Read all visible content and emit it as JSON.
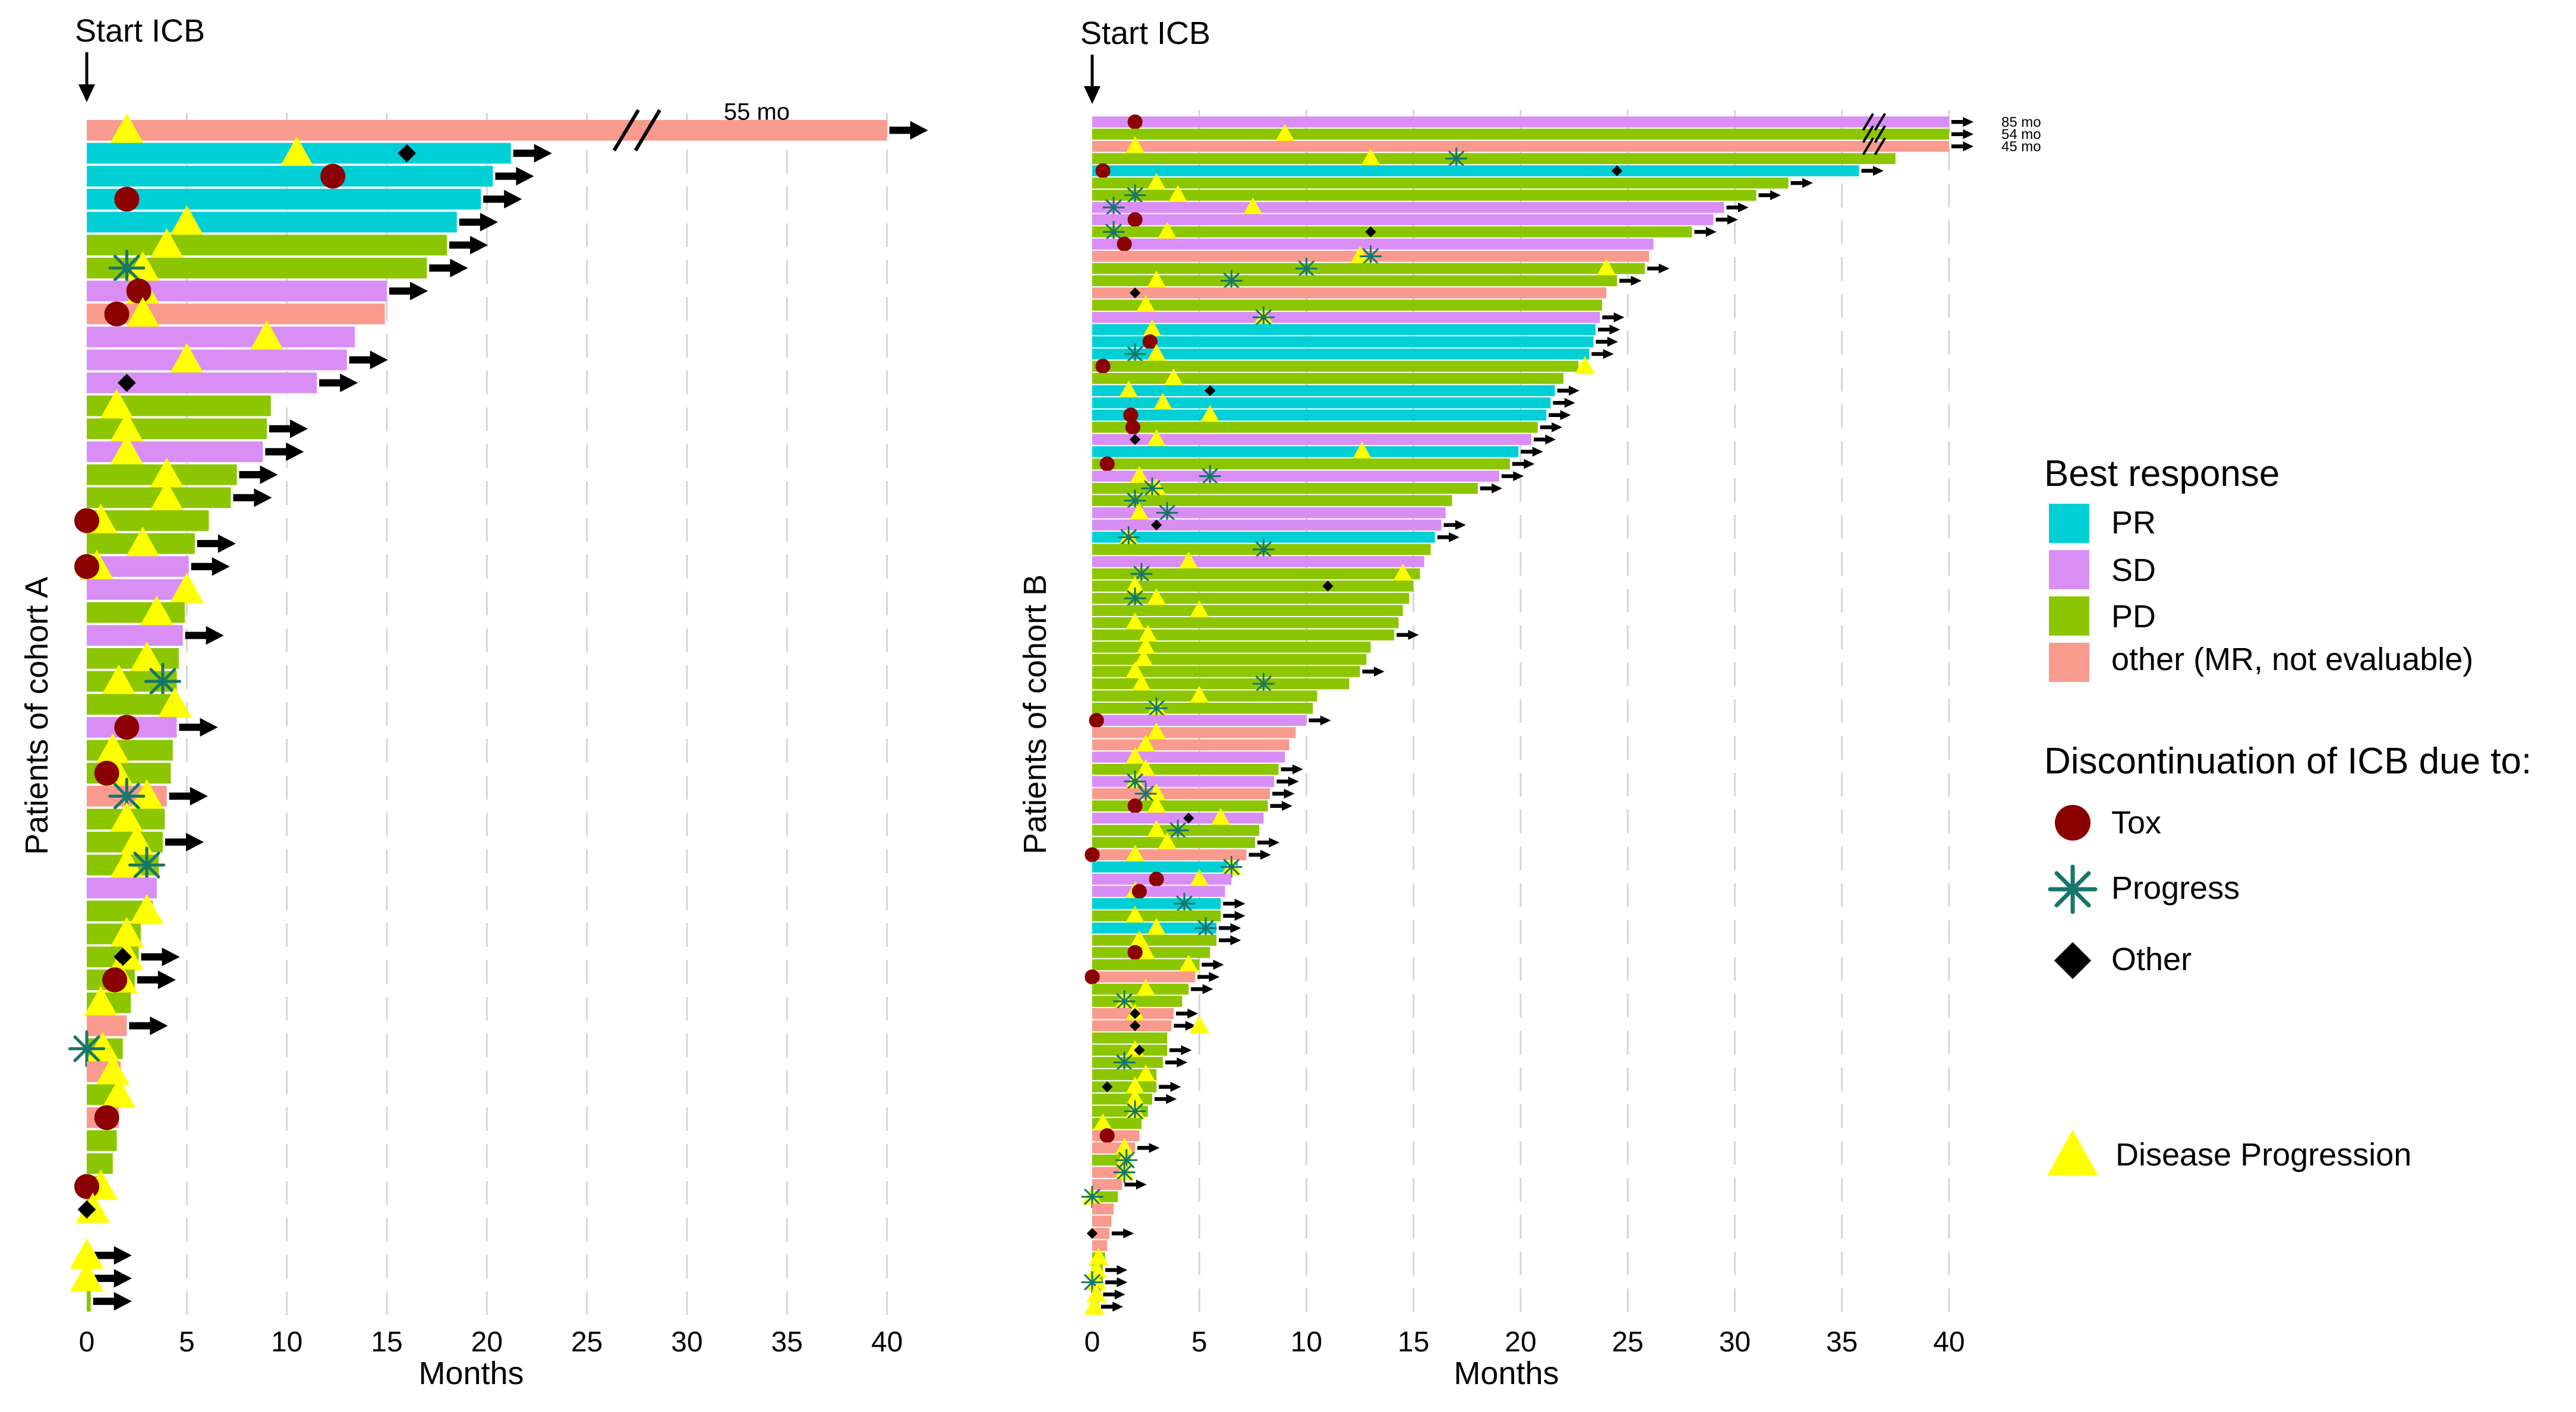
{
  "colors": {
    "PR": "#00cfd6",
    "SD": "#d98ef5",
    "PD": "#8bc600",
    "other": "#f99a8e",
    "tox": "#8b0000",
    "progress": "#17766a",
    "other_marker": "#000000",
    "disease_progression": "#ffff00",
    "grid": "#d6d6d6"
  },
  "legend": {
    "best_response_title": "Best response",
    "best_response_items": [
      {
        "key": "PR",
        "label": "PR"
      },
      {
        "key": "SD",
        "label": "SD"
      },
      {
        "key": "PD",
        "label": "PD"
      },
      {
        "key": "other",
        "label": "other (MR, not evaluable)"
      }
    ],
    "discontinuation_title": "Discontinuation of ICB due to:",
    "discontinuation_items": [
      {
        "key": "tox",
        "label": "Tox",
        "marker": "circle"
      },
      {
        "key": "progress",
        "label": "Progress",
        "marker": "asterisk"
      },
      {
        "key": "other_marker",
        "label": "Other",
        "marker": "diamond"
      }
    ],
    "disease_progression_label": "Disease Progression"
  },
  "chart_data": [
    {
      "type": "swimmer",
      "start_label": "Start ICB",
      "xlabel": "Months",
      "ylabel": "Patients of cohort A",
      "xlim": [
        0,
        42
      ],
      "xticks": [
        0,
        5,
        10,
        15,
        20,
        25,
        30,
        35,
        40
      ],
      "grid": "vertical dashed",
      "axis_break_at": 27.5,
      "annotations": [
        {
          "bar": 0,
          "text": "55 mo"
        }
      ],
      "bars": [
        {
          "len": 40.0,
          "resp": "other",
          "ongoing": true,
          "dp": 2.0
        },
        {
          "len": 21.2,
          "resp": "PR",
          "ongoing": true,
          "dp": 10.5,
          "other": 16.0
        },
        {
          "len": 20.3,
          "resp": "PR",
          "ongoing": true,
          "tox": 12.3
        },
        {
          "len": 19.7,
          "resp": "PR",
          "ongoing": true,
          "tox": 2.0
        },
        {
          "len": 18.5,
          "resp": "PR",
          "ongoing": true,
          "dp": 5.0
        },
        {
          "len": 18.0,
          "resp": "PD",
          "ongoing": true,
          "dp": 4.0
        },
        {
          "len": 17.0,
          "resp": "PD",
          "ongoing": true,
          "dp": 2.8,
          "prog": 2.0
        },
        {
          "len": 15.0,
          "resp": "SD",
          "ongoing": true,
          "dp": 2.8,
          "tox": 2.6
        },
        {
          "len": 14.9,
          "resp": "other",
          "dp": 2.8,
          "tox": 1.5
        },
        {
          "len": 13.4,
          "resp": "SD",
          "dp": 9.0
        },
        {
          "len": 13.0,
          "resp": "SD",
          "ongoing": true,
          "dp": 5.0
        },
        {
          "len": 11.5,
          "resp": "SD",
          "ongoing": true,
          "other": 2.0
        },
        {
          "len": 9.2,
          "resp": "PD",
          "dp": 1.5
        },
        {
          "len": 9.0,
          "resp": "PD",
          "ongoing": true,
          "dp": 2.0
        },
        {
          "len": 8.8,
          "resp": "SD",
          "ongoing": true,
          "dp": 2.0
        },
        {
          "len": 7.5,
          "resp": "PD",
          "ongoing": true,
          "dp": 4.0
        },
        {
          "len": 7.2,
          "resp": "PD",
          "ongoing": true,
          "dp": 4.0
        },
        {
          "len": 6.1,
          "resp": "PD",
          "dp": 0.7,
          "tox": 0.0
        },
        {
          "len": 5.4,
          "resp": "PD",
          "ongoing": true,
          "dp": 2.8
        },
        {
          "len": 5.1,
          "resp": "SD",
          "ongoing": true,
          "dp": 0.5,
          "tox": 0.0
        },
        {
          "len": 5.0,
          "resp": "SD",
          "dp": 5.0
        },
        {
          "len": 4.9,
          "resp": "PD",
          "dp": 3.5
        },
        {
          "len": 4.8,
          "resp": "SD",
          "ongoing": true
        },
        {
          "len": 4.6,
          "resp": "PD",
          "dp": 3.0
        },
        {
          "len": 4.5,
          "resp": "PD",
          "dp": 1.6,
          "prog": 3.8
        },
        {
          "len": 4.4,
          "resp": "PD",
          "dp": 4.4
        },
        {
          "len": 4.5,
          "resp": "SD",
          "ongoing": true,
          "tox": 2.0
        },
        {
          "len": 4.3,
          "resp": "PD",
          "dp": 1.3
        },
        {
          "len": 4.2,
          "resp": "PD",
          "dp": 1.5,
          "tox": 1.0
        },
        {
          "len": 4.0,
          "resp": "other",
          "ongoing": true,
          "dp": 3.0,
          "prog": 2.0
        },
        {
          "len": 3.9,
          "resp": "PD",
          "dp": 2.0
        },
        {
          "len": 3.8,
          "resp": "PD",
          "ongoing": true,
          "dp": 2.5
        },
        {
          "len": 3.6,
          "resp": "PD",
          "dp": 2.0,
          "prog": 3.0
        },
        {
          "len": 3.5,
          "resp": "SD"
        },
        {
          "len": 3.3,
          "resp": "PD",
          "dp": 3.0
        },
        {
          "len": 2.7,
          "resp": "PD",
          "dp": 2.0
        },
        {
          "len": 2.6,
          "resp": "PD",
          "ongoing": true,
          "dp": 2.0,
          "other": 1.8
        },
        {
          "len": 2.4,
          "resp": "PD",
          "ongoing": true,
          "dp": 1.7,
          "tox": 1.4
        },
        {
          "len": 2.2,
          "resp": "PD",
          "dp": 0.7
        },
        {
          "len": 2.0,
          "resp": "other",
          "ongoing": true
        },
        {
          "len": 1.8,
          "resp": "PD",
          "dp": 0.8,
          "prog": 0.0
        },
        {
          "len": 1.7,
          "resp": "other",
          "dp": 1.3
        },
        {
          "len": 1.7,
          "resp": "PD",
          "dp": 1.6
        },
        {
          "len": 1.6,
          "resp": "other",
          "tox": 1.0
        },
        {
          "len": 1.5,
          "resp": "PD"
        },
        {
          "len": 1.3,
          "resp": "PD"
        },
        {
          "len": 0.8,
          "resp": "PD",
          "dp": 0.7,
          "tox": 0.0
        },
        {
          "len": 0.3,
          "resp": "PD",
          "dp": 0.3,
          "other": 0.0
        },
        {
          "len": 0.0,
          "resp": "PD"
        },
        {
          "len": 0.2,
          "resp": "PD",
          "ongoing": true,
          "dp": 0.0
        },
        {
          "len": 0.2,
          "resp": "PD",
          "ongoing": true,
          "dp": 0.0
        },
        {
          "len": 0.2,
          "resp": "PD",
          "ongoing": true
        }
      ]
    },
    {
      "type": "swimmer",
      "start_label": "Start ICB",
      "xlabel": "Months",
      "ylabel": "Patients of cohort B",
      "xlim": [
        0,
        42
      ],
      "xticks": [
        0,
        5,
        10,
        15,
        20,
        25,
        30,
        35,
        40
      ],
      "grid": "vertical dashed",
      "axis_break_at": 36.5,
      "annotations": [
        {
          "bar": 0,
          "text": "85 mo"
        },
        {
          "bar": 1,
          "text": "54 mo"
        },
        {
          "bar": 2,
          "text": "45 mo"
        }
      ],
      "bars": [
        {
          "len": 40.0,
          "resp": "SD",
          "ongoing": true,
          "tox": 2.0
        },
        {
          "len": 40.0,
          "resp": "PD",
          "ongoing": true,
          "dp": 9.0
        },
        {
          "len": 40.0,
          "resp": "other",
          "ongoing": true,
          "dp": 2.0
        },
        {
          "len": 37.5,
          "resp": "PD",
          "dp": 13.0,
          "prog": 17.0
        },
        {
          "len": 35.8,
          "resp": "PR",
          "ongoing": true,
          "tox": 0.5,
          "other": 24.5
        },
        {
          "len": 32.5,
          "resp": "PD",
          "ongoing": true,
          "dp": 3.0
        },
        {
          "len": 31.0,
          "resp": "PD",
          "ongoing": true,
          "dp": 4.0,
          "prog": 2.0
        },
        {
          "len": 29.5,
          "resp": "SD",
          "ongoing": true,
          "dp": 7.5,
          "prog": 1.0
        },
        {
          "len": 29.0,
          "resp": "SD",
          "ongoing": true,
          "tox": 2.0
        },
        {
          "len": 28.0,
          "resp": "PD",
          "ongoing": true,
          "dp": 3.5,
          "prog": 1.0,
          "other": 13.0
        },
        {
          "len": 26.2,
          "resp": "SD",
          "tox": 1.5
        },
        {
          "len": 26.0,
          "resp": "other",
          "dp": 12.5,
          "prog": 13.0
        },
        {
          "len": 25.8,
          "resp": "PD",
          "ongoing": true,
          "dp": 24.0,
          "prog": 10.0
        },
        {
          "len": 24.5,
          "resp": "PD",
          "ongoing": true,
          "dp": 3.0,
          "prog": 6.5
        },
        {
          "len": 24.0,
          "resp": "other",
          "other": 2.0
        },
        {
          "len": 23.8,
          "resp": "PD",
          "dp": 2.5
        },
        {
          "len": 23.7,
          "resp": "SD",
          "ongoing": true,
          "dp": 8.0,
          "prog": 8.0
        },
        {
          "len": 23.5,
          "resp": "PR",
          "ongoing": true,
          "dp": 2.8
        },
        {
          "len": 23.4,
          "resp": "PR",
          "ongoing": true,
          "tox": 2.7
        },
        {
          "len": 23.2,
          "resp": "PR",
          "ongoing": true,
          "dp": 3.0,
          "prog": 2.0
        },
        {
          "len": 22.7,
          "resp": "PD",
          "dp": 23.0,
          "tox": 0.5
        },
        {
          "len": 22.0,
          "resp": "PD",
          "dp": 3.8
        },
        {
          "len": 21.6,
          "resp": "PR",
          "ongoing": true,
          "dp": 1.7,
          "other": 5.5
        },
        {
          "len": 21.4,
          "resp": "PR",
          "ongoing": true,
          "dp": 3.3
        },
        {
          "len": 21.2,
          "resp": "PR",
          "ongoing": true,
          "dp": 5.5,
          "tox": 1.8
        },
        {
          "len": 20.8,
          "resp": "PD",
          "ongoing": true,
          "tox": 1.9
        },
        {
          "len": 20.5,
          "resp": "SD",
          "ongoing": true,
          "dp": 3.0,
          "other": 2.0
        },
        {
          "len": 19.9,
          "resp": "PR",
          "ongoing": true,
          "dp": 12.6
        },
        {
          "len": 19.5,
          "resp": "PD",
          "ongoing": true,
          "tox": 0.7
        },
        {
          "len": 19.0,
          "resp": "SD",
          "ongoing": true,
          "dp": 2.2,
          "prog": 5.5
        },
        {
          "len": 18.0,
          "resp": "PD",
          "ongoing": true,
          "dp": 3.0,
          "prog": 2.8
        },
        {
          "len": 16.8,
          "resp": "PD",
          "prog": 2.0
        },
        {
          "len": 16.5,
          "resp": "SD",
          "dp": 2.2,
          "prog": 3.5
        },
        {
          "len": 16.3,
          "resp": "SD",
          "ongoing": true,
          "other": 3.0
        },
        {
          "len": 16.0,
          "resp": "PR",
          "ongoing": true,
          "dp": 1.7,
          "prog": 1.7
        },
        {
          "len": 15.8,
          "resp": "PD",
          "prog": 8.0
        },
        {
          "len": 15.5,
          "resp": "SD",
          "dp": 4.5
        },
        {
          "len": 15.3,
          "resp": "PD",
          "dp": 14.5,
          "prog": 2.3
        },
        {
          "len": 15.0,
          "resp": "PD",
          "dp": 2.0,
          "other": 11.0
        },
        {
          "len": 14.8,
          "resp": "PD",
          "dp": 3.0,
          "prog": 2.0
        },
        {
          "len": 14.5,
          "resp": "PD",
          "dp": 5.0
        },
        {
          "len": 14.3,
          "resp": "PD",
          "dp": 2.0
        },
        {
          "len": 14.1,
          "resp": "PD",
          "ongoing": true,
          "dp": 2.6
        },
        {
          "len": 13.0,
          "resp": "PD",
          "dp": 2.5
        },
        {
          "len": 12.8,
          "resp": "PD",
          "dp": 2.4
        },
        {
          "len": 12.5,
          "resp": "PD",
          "ongoing": true,
          "dp": 2.0
        },
        {
          "len": 12.0,
          "resp": "PD",
          "dp": 2.3,
          "prog": 8.0
        },
        {
          "len": 10.5,
          "resp": "PD",
          "dp": 5.0
        },
        {
          "len": 10.3,
          "resp": "PD",
          "dp": 3.0,
          "prog": 3.0
        },
        {
          "len": 10.0,
          "resp": "SD",
          "ongoing": true,
          "tox": 0.2
        },
        {
          "len": 9.5,
          "resp": "other",
          "dp": 3.0
        },
        {
          "len": 9.2,
          "resp": "other",
          "dp": 2.5
        },
        {
          "len": 9.0,
          "resp": "SD",
          "dp": 2.0
        },
        {
          "len": 8.7,
          "resp": "PD",
          "ongoing": true,
          "dp": 2.5
        },
        {
          "len": 8.5,
          "resp": "SD",
          "ongoing": true,
          "dp": 2.0,
          "prog": 2.0
        },
        {
          "len": 8.3,
          "resp": "other",
          "ongoing": true,
          "dp": 3.0,
          "prog": 2.5
        },
        {
          "len": 8.2,
          "resp": "PD",
          "ongoing": true,
          "dp": 3.0,
          "tox": 2.0
        },
        {
          "len": 8.0,
          "resp": "SD",
          "dp": 6.0,
          "other": 4.5
        },
        {
          "len": 7.8,
          "resp": "PD",
          "dp": 3.0,
          "prog": 4.0
        },
        {
          "len": 7.6,
          "resp": "PD",
          "ongoing": true,
          "dp": 3.5
        },
        {
          "len": 7.2,
          "resp": "other",
          "ongoing": true,
          "dp": 2.0,
          "tox": 0.0
        },
        {
          "len": 6.8,
          "resp": "PR",
          "dp": 6.5,
          "prog": 6.5
        },
        {
          "len": 6.5,
          "resp": "SD",
          "dp": 5.0,
          "tox": 3.0
        },
        {
          "len": 6.2,
          "resp": "SD",
          "dp": 2.0,
          "tox": 2.2
        },
        {
          "len": 6.0,
          "resp": "PR",
          "ongoing": true,
          "prog": 4.3
        },
        {
          "len": 6.0,
          "resp": "PD",
          "ongoing": true,
          "dp": 2.0
        },
        {
          "len": 5.8,
          "resp": "PR",
          "ongoing": true,
          "dp": 3.0,
          "prog": 5.3
        },
        {
          "len": 5.8,
          "resp": "PD",
          "ongoing": true,
          "dp": 2.2
        },
        {
          "len": 5.5,
          "resp": "PD",
          "dp": 2.5,
          "tox": 2.0
        },
        {
          "len": 5.0,
          "resp": "PD",
          "ongoing": true,
          "dp": 4.5
        },
        {
          "len": 4.8,
          "resp": "other",
          "ongoing": true,
          "tox": 0.0
        },
        {
          "len": 4.5,
          "resp": "PD",
          "ongoing": true,
          "dp": 2.5
        },
        {
          "len": 4.2,
          "resp": "PD",
          "dp": 1.5,
          "prog": 1.5
        },
        {
          "len": 3.8,
          "resp": "other",
          "ongoing": true,
          "dp": 2.0,
          "other": 2.0
        },
        {
          "len": 3.7,
          "resp": "other",
          "ongoing": true,
          "dp": 5.0,
          "other": 2.0
        },
        {
          "len": 3.5,
          "resp": "PD"
        },
        {
          "len": 3.5,
          "resp": "PD",
          "ongoing": true,
          "dp": 2.0,
          "other": 2.2
        },
        {
          "len": 3.3,
          "resp": "PD",
          "ongoing": true,
          "prog": 1.5
        },
        {
          "len": 3.0,
          "resp": "PD",
          "dp": 2.5
        },
        {
          "len": 3.0,
          "resp": "PD",
          "ongoing": true,
          "dp": 2.0,
          "other": 0.7
        },
        {
          "len": 2.8,
          "resp": "PD",
          "ongoing": true,
          "dp": 2.0
        },
        {
          "len": 2.6,
          "resp": "PD",
          "dp": 2.0,
          "prog": 2.0
        },
        {
          "len": 2.3,
          "resp": "PD",
          "dp": 0.5
        },
        {
          "len": 2.2,
          "resp": "other",
          "tox": 0.7
        },
        {
          "len": 2.0,
          "resp": "other",
          "ongoing": true,
          "dp": 1.5
        },
        {
          "len": 1.8,
          "resp": "PD",
          "dp": 1.5,
          "prog": 1.6
        },
        {
          "len": 1.6,
          "resp": "other",
          "dp": 1.5,
          "prog": 1.5
        },
        {
          "len": 1.4,
          "resp": "other",
          "ongoing": true
        },
        {
          "len": 1.2,
          "resp": "PD",
          "dp": 0.0,
          "prog": 0.0
        },
        {
          "len": 1.0,
          "resp": "other"
        },
        {
          "len": 0.9,
          "resp": "other"
        },
        {
          "len": 0.8,
          "resp": "other",
          "ongoing": true,
          "other": 0.0
        },
        {
          "len": 0.7,
          "resp": "other"
        },
        {
          "len": 0.6,
          "resp": "PD",
          "dp": 0.3
        },
        {
          "len": 0.5,
          "resp": "PD",
          "ongoing": true,
          "dp": 0.2
        },
        {
          "len": 0.5,
          "resp": "PD",
          "ongoing": true,
          "dp": 0.2,
          "prog": 0.0
        },
        {
          "len": 0.4,
          "resp": "PD",
          "ongoing": true,
          "dp": 0.2
        },
        {
          "len": 0.3,
          "resp": "other",
          "ongoing": true,
          "dp": 0.1
        }
      ]
    }
  ]
}
